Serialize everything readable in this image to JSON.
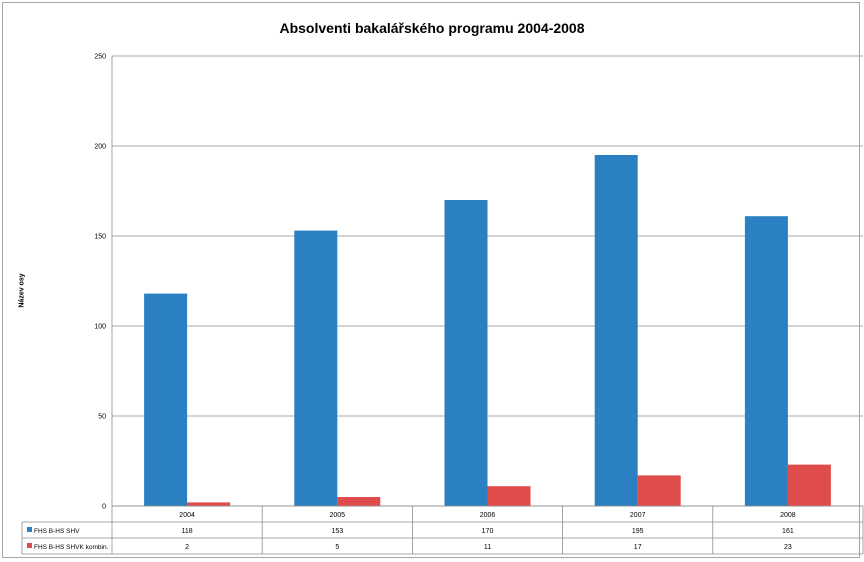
{
  "chart_data": {
    "type": "bar",
    "title": "Absolventi bakalářského programu 2004-2008",
    "ylabel": "Název osy",
    "xlabel": "",
    "ylim": [
      0,
      250
    ],
    "yticks": [
      0,
      50,
      100,
      150,
      200,
      250
    ],
    "categories": [
      "2004",
      "2005",
      "2006",
      "2007",
      "2008"
    ],
    "grid": true,
    "legend": "data-table",
    "series": [
      {
        "name": "FHS B-HS SHV",
        "color": "#2a80c0",
        "values": [
          118,
          153,
          170,
          195,
          161
        ]
      },
      {
        "name": "FHS B-HS SHVK kombin.",
        "color": "#e04c4c",
        "values": [
          2,
          5,
          11,
          17,
          23
        ]
      }
    ]
  }
}
